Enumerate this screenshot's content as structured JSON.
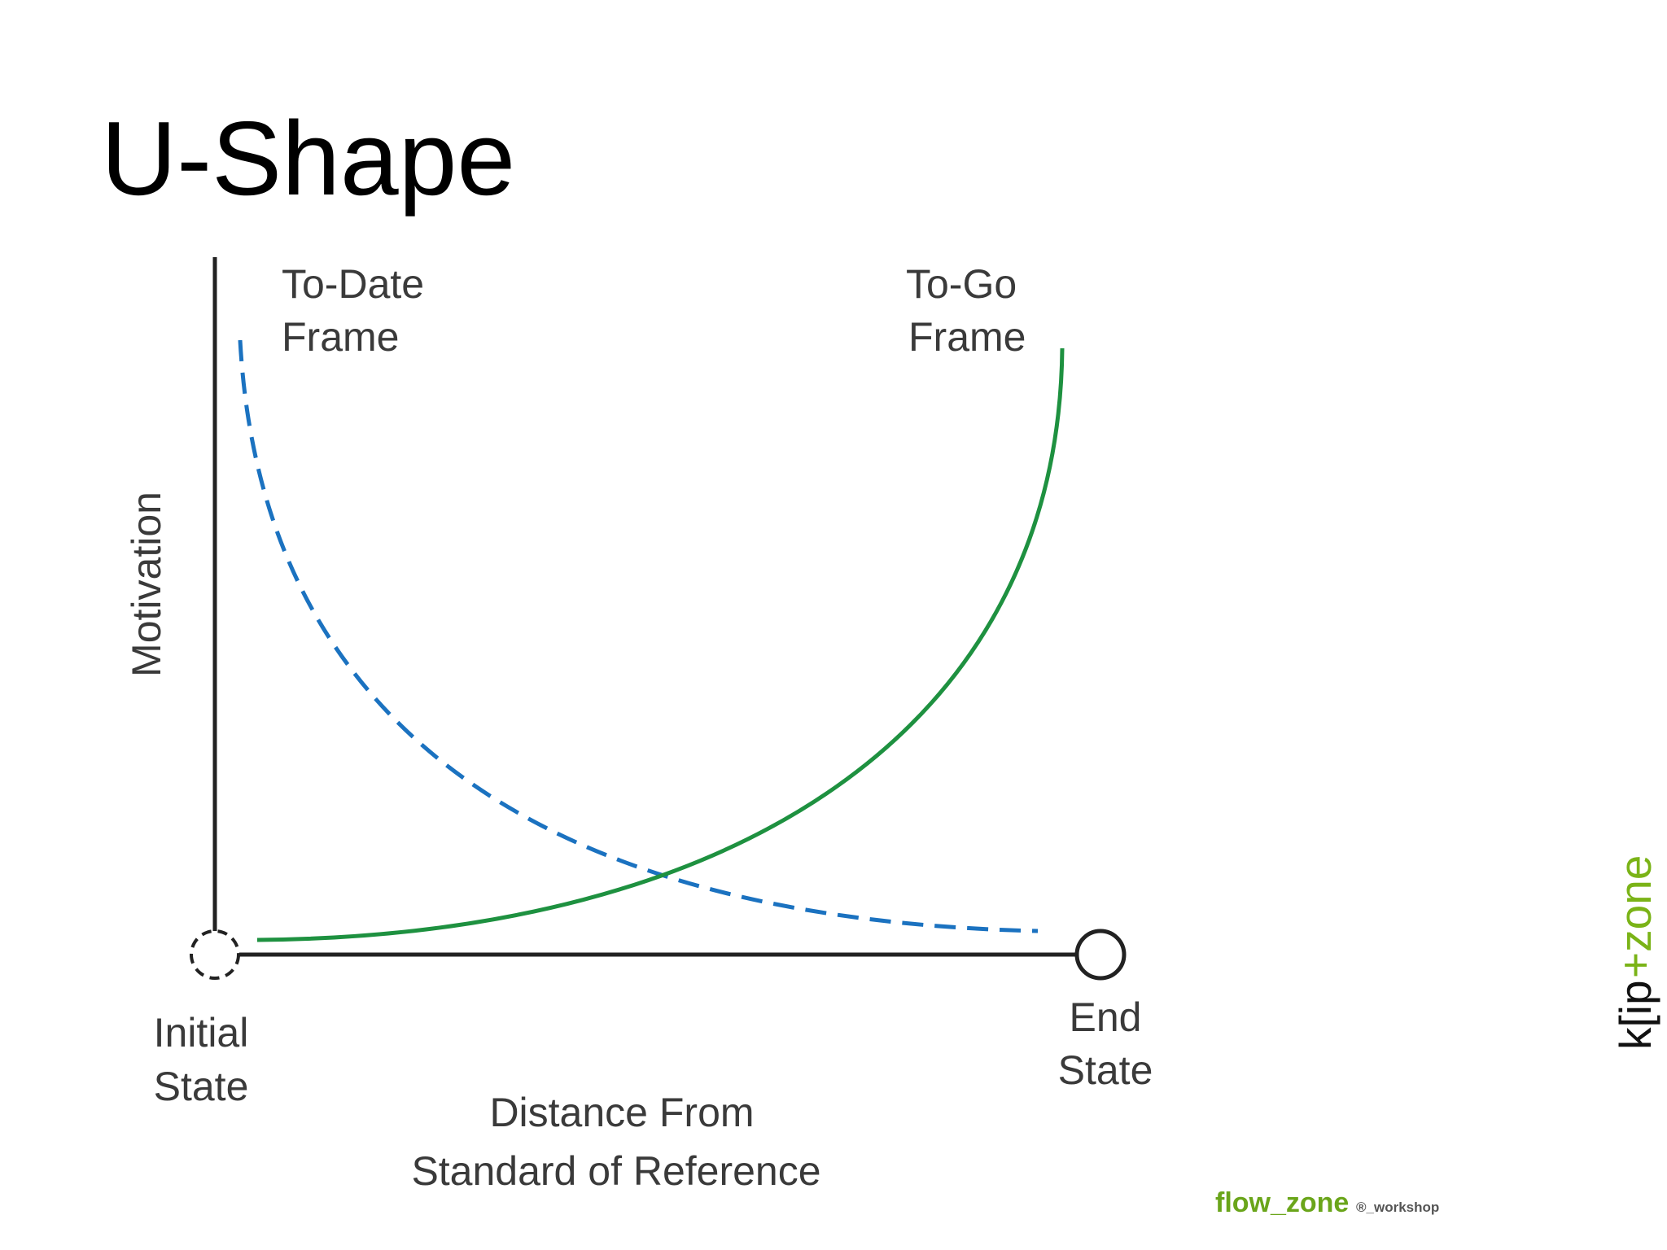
{
  "header": {
    "title": "U-Shape"
  },
  "diagram": {
    "to_date_label": [
      "To-Date",
      "Frame"
    ],
    "to_go_label": [
      "To-Go",
      "Frame"
    ],
    "y_axis_label": "Motivation",
    "start_label": [
      "Initial",
      "State"
    ],
    "end_label": [
      "End",
      "State"
    ],
    "x_axis_label": [
      "Distance From",
      "Standard of Reference"
    ]
  },
  "footer": {
    "brand": "flow_zone",
    "brand_suffix": "®_workshop",
    "side_logo_dark": "k[ip",
    "side_logo_green": "+zone"
  }
}
